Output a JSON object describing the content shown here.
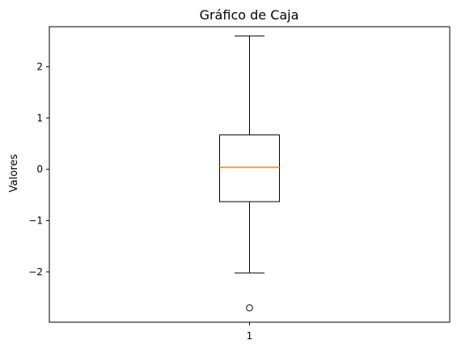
{
  "chart_data": {
    "type": "box",
    "title": "Gráfico de Caja",
    "xlabel": "",
    "ylabel": "Valores",
    "categories": [
      "1"
    ],
    "ylim": [
      -2.98,
      2.78
    ],
    "yticks": [
      {
        "value": 2,
        "label": "2"
      },
      {
        "value": 1,
        "label": "1"
      },
      {
        "value": 0,
        "label": "0"
      },
      {
        "value": -1,
        "label": "−1"
      },
      {
        "value": -2,
        "label": "−2"
      }
    ],
    "boxes": [
      {
        "category": "1",
        "whisker_low": -2.02,
        "q1": -0.63,
        "median": 0.04,
        "q3": 0.67,
        "whisker_high": 2.6,
        "outliers": [
          -2.7
        ]
      }
    ],
    "grid": false,
    "colors": {
      "box": "#000000",
      "median": "#ff7f0e",
      "background": "#ffffff"
    }
  }
}
